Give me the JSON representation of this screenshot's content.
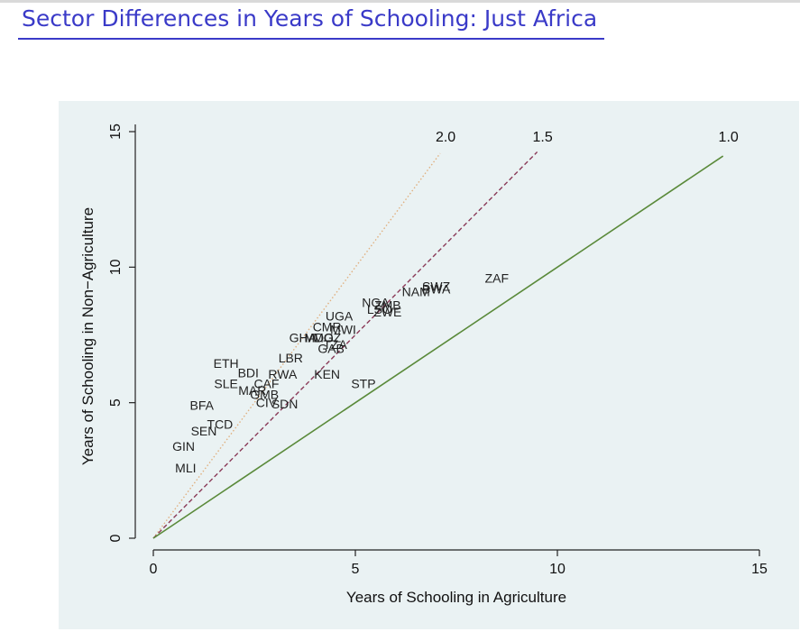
{
  "slide": {
    "title": "Sector Differences in Years of Schooling: Just Africa"
  },
  "chart_data": {
    "type": "scatter",
    "xlabel": "Years of Schooling in Agriculture",
    "ylabel": "Years of Schooling in Non−Agriculture",
    "xlim": [
      0,
      15
    ],
    "ylim": [
      0,
      15
    ],
    "xticks": [
      0,
      5,
      10,
      15
    ],
    "yticks": [
      0,
      5,
      10,
      15
    ],
    "grid": false,
    "background": "#eaf2f3",
    "reference_lines": [
      {
        "label": "2.0",
        "slope": 2.0,
        "x_end": 7.1,
        "style": "dotted",
        "color": "#e0b080"
      },
      {
        "label": "1.5",
        "slope": 1.5,
        "x_end": 9.5,
        "style": "dashed",
        "color": "#8a3a58"
      },
      {
        "label": "1.0",
        "slope": 1.0,
        "x_end": 14.1,
        "style": "solid",
        "color": "#5a8a3a"
      }
    ],
    "points": [
      {
        "label": "ZAF",
        "x": 8.5,
        "y": 9.6
      },
      {
        "label": "SWZ",
        "x": 7.0,
        "y": 9.3
      },
      {
        "label": "NAM",
        "x": 6.5,
        "y": 9.1
      },
      {
        "label": "BWA",
        "x": 7.0,
        "y": 9.2
      },
      {
        "label": "NGA",
        "x": 5.5,
        "y": 8.7
      },
      {
        "label": "ZMB",
        "x": 5.8,
        "y": 8.6
      },
      {
        "label": "LSO",
        "x": 5.6,
        "y": 8.45
      },
      {
        "label": "ZWE",
        "x": 5.8,
        "y": 8.35
      },
      {
        "label": "UGA",
        "x": 4.6,
        "y": 8.2
      },
      {
        "label": "CMR",
        "x": 4.3,
        "y": 7.8
      },
      {
        "label": "MWI",
        "x": 4.7,
        "y": 7.7
      },
      {
        "label": "GHA",
        "x": 3.7,
        "y": 7.4
      },
      {
        "label": "MDG",
        "x": 4.1,
        "y": 7.4
      },
      {
        "label": "MOZ",
        "x": 4.3,
        "y": 7.4
      },
      {
        "label": "TZA",
        "x": 4.5,
        "y": 7.15
      },
      {
        "label": "GAB",
        "x": 4.4,
        "y": 7.0
      },
      {
        "label": "LBR",
        "x": 3.4,
        "y": 6.65
      },
      {
        "label": "ETH",
        "x": 1.8,
        "y": 6.45
      },
      {
        "label": "BDI",
        "x": 2.35,
        "y": 6.1
      },
      {
        "label": "RWA",
        "x": 3.2,
        "y": 6.05
      },
      {
        "label": "KEN",
        "x": 4.3,
        "y": 6.05
      },
      {
        "label": "STP",
        "x": 5.2,
        "y": 5.7
      },
      {
        "label": "SLE",
        "x": 1.8,
        "y": 5.7
      },
      {
        "label": "CAF",
        "x": 2.8,
        "y": 5.7
      },
      {
        "label": "MAR",
        "x": 2.45,
        "y": 5.45
      },
      {
        "label": "GMB",
        "x": 2.75,
        "y": 5.3
      },
      {
        "label": "CIV",
        "x": 2.8,
        "y": 5.0
      },
      {
        "label": "SDN",
        "x": 3.25,
        "y": 4.95
      },
      {
        "label": "BFA",
        "x": 1.2,
        "y": 4.9
      },
      {
        "label": "TCD",
        "x": 1.65,
        "y": 4.2
      },
      {
        "label": "SEN",
        "x": 1.25,
        "y": 3.95
      },
      {
        "label": "GIN",
        "x": 0.75,
        "y": 3.4
      },
      {
        "label": "MLI",
        "x": 0.8,
        "y": 2.6
      }
    ]
  }
}
